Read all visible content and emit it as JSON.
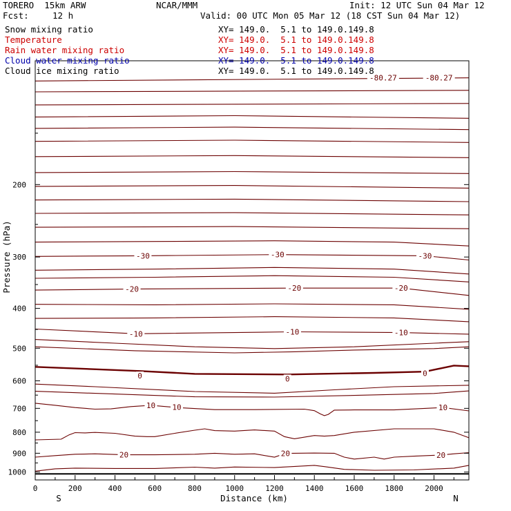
{
  "header": {
    "model": "TORERO  15km ARW",
    "center": "NCAR/MMM",
    "init": "Init: 12 UTC Sun 04 Mar 12",
    "fcst_label": "Fcst:",
    "fcst_value": "12 h",
    "valid": "Valid: 00 UTC Mon 05 Mar 12 (18 CST Sun 04 Mar 12)"
  },
  "fields": [
    {
      "name": "Snow mixing ratio",
      "xy": "XY= 149.0.  5.1 to 149.0.149.8",
      "color": "#000000"
    },
    {
      "name": "Temperature",
      "xy": "XY= 149.0.  5.1 to 149.0.149.8",
      "color": "#cc0000"
    },
    {
      "name": "Rain water mixing ratio",
      "xy": "XY= 149.0.  5.1 to 149.0.149.8",
      "color": "#cc0000"
    },
    {
      "name": "Cloud water mixing ratio",
      "xy": "XY= 149.0.  5.1 to 149.0.149.8",
      "color": "#0000aa"
    },
    {
      "name": "Cloud ice mixing ratio",
      "xy": "XY= 149.0.  5.1 to 149.0.149.8",
      "color": "#000000"
    }
  ],
  "chart_data": {
    "type": "line",
    "xlabel": "Distance (km)",
    "ylabel": "Pressure (hPa)",
    "xlim": [
      0,
      2175
    ],
    "ylim": [
      100,
      1045
    ],
    "y_scale": "log",
    "x_ticks": [
      0,
      200,
      400,
      600,
      800,
      1000,
      1200,
      1400,
      1600,
      1800,
      2000
    ],
    "y_ticks": [
      200,
      300,
      400,
      500,
      600,
      700,
      800,
      900,
      1000
    ],
    "left_end_label": "S",
    "right_end_label": "N",
    "contour_color": "#6b0000",
    "surface_pressure": 1010,
    "contour_labels": [
      {
        "text": "-80.27",
        "x": 2025,
        "p": 110
      },
      {
        "text": "-80.27",
        "x": 1745,
        "p": 110
      },
      {
        "text": "-30",
        "x": 540,
        "p": 298
      },
      {
        "text": "-30",
        "x": 1215,
        "p": 296
      },
      {
        "text": "-30",
        "x": 1955,
        "p": 298
      },
      {
        "text": "-20",
        "x": 485,
        "p": 359
      },
      {
        "text": "-20",
        "x": 1300,
        "p": 357
      },
      {
        "text": "-20",
        "x": 1835,
        "p": 357
      },
      {
        "text": "-10",
        "x": 505,
        "p": 461
      },
      {
        "text": "-10",
        "x": 1290,
        "p": 456
      },
      {
        "text": "-10",
        "x": 1835,
        "p": 458
      },
      {
        "text": "0",
        "x": 525,
        "p": 583
      },
      {
        "text": "0",
        "x": 1265,
        "p": 593
      },
      {
        "text": "0",
        "x": 1955,
        "p": 575
      },
      {
        "text": "10",
        "x": 580,
        "p": 688
      },
      {
        "text": "10",
        "x": 710,
        "p": 695
      },
      {
        "text": "10",
        "x": 2045,
        "p": 697
      },
      {
        "text": "20",
        "x": 445,
        "p": 908
      },
      {
        "text": "20",
        "x": 1255,
        "p": 901
      },
      {
        "text": "20",
        "x": 2035,
        "p": 909
      }
    ],
    "series": [
      {
        "x": [
          0,
          2175
        ],
        "p": [
          112,
          110
        ]
      },
      {
        "x": [
          0,
          2175
        ],
        "p": [
          119,
          118
        ]
      },
      {
        "x": [
          0,
          2175
        ],
        "p": [
          128,
          127
        ]
      },
      {
        "x": [
          0,
          1000,
          2175
        ],
        "p": [
          137,
          136,
          138
        ]
      },
      {
        "x": [
          0,
          1000,
          2175
        ],
        "p": [
          146,
          145,
          147
        ]
      },
      {
        "x": [
          0,
          1000,
          2175
        ],
        "p": [
          157,
          156,
          158
        ]
      },
      {
        "x": [
          0,
          1000,
          2175
        ],
        "p": [
          171,
          170,
          172
        ]
      },
      {
        "x": [
          0,
          1000,
          2175
        ],
        "p": [
          187,
          186,
          188
        ]
      },
      {
        "x": [
          0,
          1000,
          2175
        ],
        "p": [
          202,
          201,
          204
        ]
      },
      {
        "x": [
          0,
          1000,
          2175
        ],
        "p": [
          218,
          217,
          220
        ]
      },
      {
        "x": [
          0,
          1000,
          2175
        ],
        "p": [
          235,
          234,
          237
        ]
      },
      {
        "x": [
          0,
          1000,
          2175
        ],
        "p": [
          254,
          253,
          256
        ]
      },
      {
        "x": [
          0,
          600,
          1200,
          1800,
          2175
        ],
        "p": [
          276,
          275,
          274,
          276,
          282
        ]
      },
      {
        "x": [
          0,
          540,
          1215,
          1955,
          2175
        ],
        "p": [
          299,
          298,
          296,
          298,
          305
        ]
      },
      {
        "x": [
          0,
          600,
          1200,
          1800,
          2175
        ],
        "p": [
          323,
          321,
          318,
          321,
          330
        ]
      },
      {
        "x": [
          0,
          600,
          1200,
          1800,
          2175
        ],
        "p": [
          338,
          336,
          333,
          336,
          345
        ]
      },
      {
        "x": [
          0,
          485,
          1300,
          1835,
          2175
        ],
        "p": [
          361,
          359,
          357,
          357,
          372
        ]
      },
      {
        "x": [
          0,
          600,
          1200,
          1800,
          2175
        ],
        "p": [
          391,
          392,
          390,
          392,
          402
        ]
      },
      {
        "x": [
          0,
          600,
          1200,
          1800,
          2175
        ],
        "p": [
          423,
          422,
          419,
          422,
          431
        ]
      },
      {
        "x": [
          0,
          505,
          1290,
          1835,
          2175
        ],
        "p": [
          449,
          461,
          456,
          458,
          462
        ]
      },
      {
        "x": [
          0,
          400,
          800,
          1200,
          1600,
          2000,
          2175
        ],
        "p": [
          476,
          486,
          496,
          501,
          496,
          486,
          482
        ]
      },
      {
        "x": [
          0,
          500,
          1000,
          1300,
          1600,
          2000,
          2175
        ],
        "p": [
          496,
          507,
          513,
          510,
          505,
          501,
          496
        ]
      },
      {
        "x": [
          0,
          525,
          800,
          1265,
          1700,
          1955,
          2100,
          2175
        ],
        "p": [
          555,
          568,
          577,
          579,
          574,
          570,
          551,
          553
        ],
        "bold": true
      },
      {
        "x": [
          0,
          300,
          800,
          1200,
          1500,
          1800,
          2175
        ],
        "p": [
          611,
          620,
          637,
          643,
          631,
          620,
          615
        ]
      },
      {
        "x": [
          0,
          400,
          800,
          1200,
          1600,
          2000,
          2175
        ],
        "p": [
          636,
          646,
          656,
          657,
          651,
          644,
          635
        ]
      },
      {
        "x": [
          0,
          100,
          200,
          300,
          380,
          480,
          580,
          710,
          900,
          1100,
          1350,
          1400,
          1430,
          1450,
          1470,
          1500,
          1600,
          1800,
          2045,
          2175
        ],
        "p": [
          680,
          688,
          697,
          703,
          702,
          693,
          688,
          697,
          705,
          705,
          703,
          709,
          722,
          729,
          724,
          707,
          706,
          706,
          697,
          710
        ]
      },
      {
        "x": [
          0,
          130,
          170,
          200,
          250,
          300,
          400,
          500,
          560,
          600,
          700,
          800,
          850,
          900,
          1000,
          1100,
          1200,
          1250,
          1300,
          1400,
          1450,
          1500,
          1600,
          1800,
          2000,
          2100,
          2175
        ],
        "p": [
          835,
          832,
          812,
          802,
          803,
          801,
          805,
          818,
          820,
          820,
          805,
          791,
          785,
          793,
          795,
          790,
          795,
          820,
          830,
          815,
          818,
          815,
          800,
          785,
          785,
          800,
          825
        ]
      },
      {
        "x": [
          0,
          100,
          200,
          300,
          445,
          600,
          800,
          900,
          1000,
          1100,
          1200,
          1255,
          1400,
          1500,
          1550,
          1600,
          1700,
          1750,
          1800,
          1900,
          2035,
          2100,
          2175
        ],
        "p": [
          920,
          912,
          905,
          903,
          908,
          908,
          905,
          900,
          905,
          903,
          920,
          901,
          899,
          900,
          920,
          930,
          920,
          930,
          920,
          915,
          909,
          903,
          897
        ]
      },
      {
        "x": [
          0,
          100,
          200,
          400,
          600,
          800,
          900,
          1000,
          1200,
          1400,
          1450,
          1550,
          1700,
          1900,
          2100,
          2175
        ],
        "p": [
          995,
          982,
          978,
          980,
          980,
          973,
          978,
          972,
          975,
          963,
          970,
          985,
          990,
          988,
          978,
          963
        ]
      }
    ]
  }
}
